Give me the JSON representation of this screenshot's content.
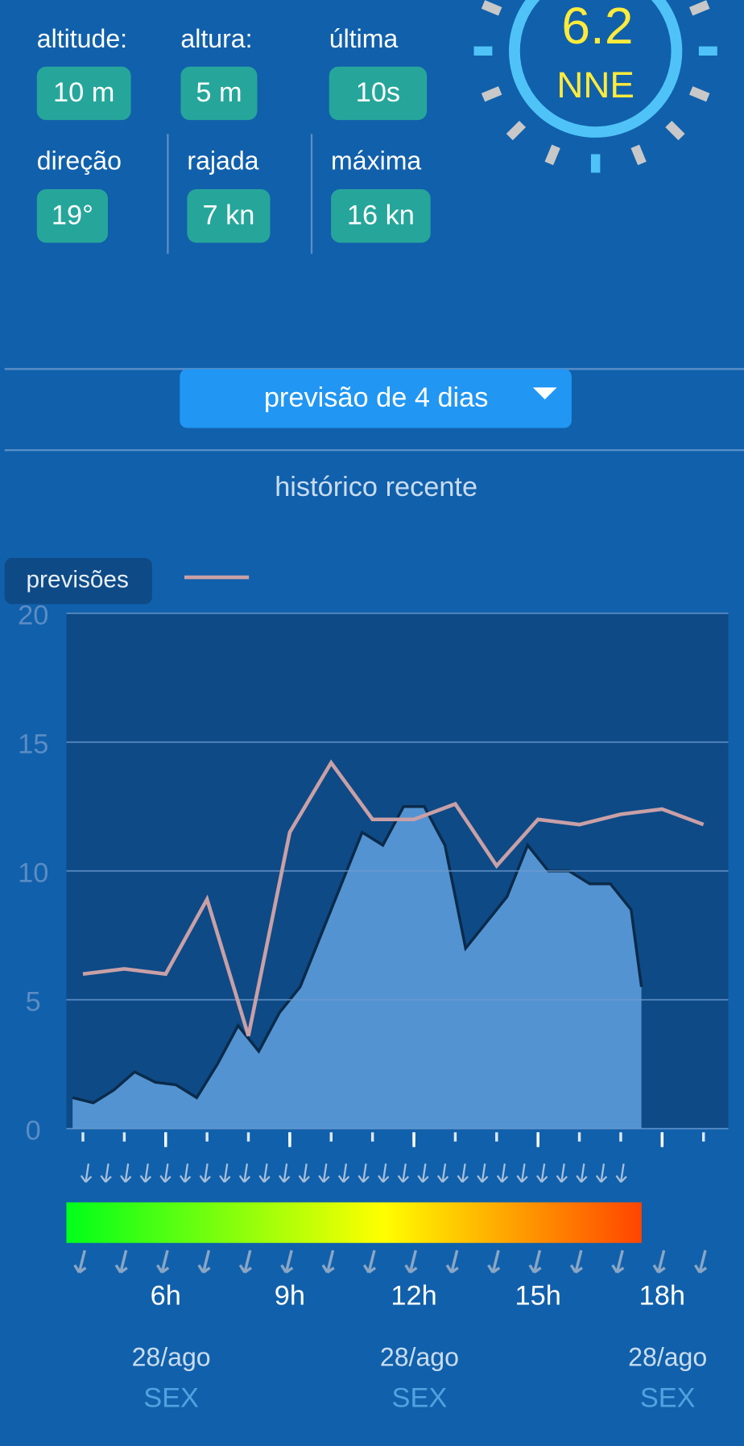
{
  "header": {
    "stats": [
      {
        "label": "altitude:",
        "value": "10 m"
      },
      {
        "label": "altura:",
        "value": "5 m"
      },
      {
        "label": "última",
        "value": "10s"
      },
      {
        "label": "direção",
        "value": "19°"
      },
      {
        "label": "rajada",
        "value": "7 kn"
      },
      {
        "label": "máxima",
        "value": "16 kn"
      }
    ],
    "wind": {
      "speed": "6.2",
      "direction": "NNE"
    }
  },
  "menu": {
    "selected": "previsão de 4 dias"
  },
  "section_title": "histórico recente",
  "chart_data": {
    "type": "line",
    "x": [
      4,
      5,
      6,
      7,
      8,
      9,
      10,
      11,
      12,
      13,
      14,
      15,
      16,
      17,
      18,
      19
    ],
    "series": [
      {
        "name": "previsões",
        "color": "#c9a0a6",
        "values": [
          6.0,
          6.2,
          6.0,
          8.9,
          3.6,
          11.5,
          14.2,
          12.0,
          12.0,
          12.6,
          10.2,
          12.0,
          11.8,
          12.2,
          12.4,
          11.8
        ]
      }
    ],
    "observed": {
      "color": "#5b9bd9",
      "line_color": "#0b2a4a",
      "x": [
        3.75,
        4.25,
        4.75,
        5.25,
        5.75,
        6.25,
        6.75,
        7.25,
        7.75,
        8.25,
        8.75,
        9.25,
        9.75,
        10.25,
        10.75,
        11.25,
        11.75,
        12.25,
        12.75,
        13.25,
        13.75,
        14.25,
        14.75,
        15.25,
        15.75,
        16.25,
        16.75,
        17.25,
        17.5
      ],
      "values": [
        1.2,
        1.0,
        1.5,
        2.2,
        1.8,
        1.7,
        1.2,
        2.5,
        4.0,
        3.0,
        4.5,
        5.5,
        7.5,
        9.5,
        11.5,
        11.0,
        12.5,
        12.5,
        11.0,
        7.0,
        8.0,
        9.0,
        11.0,
        10.0,
        10.0,
        9.5,
        9.5,
        8.5,
        5.5
      ]
    },
    "xlim": [
      3.6,
      19.6
    ],
    "xticks": [
      {
        "value": 6,
        "label": "6h"
      },
      {
        "value": 9,
        "label": "9h"
      },
      {
        "value": 12,
        "label": "12h"
      },
      {
        "value": 15,
        "label": "15h"
      },
      {
        "value": 18,
        "label": "18h"
      }
    ],
    "ylim": [
      0,
      20
    ],
    "yticks": [
      0,
      5,
      10,
      15,
      20
    ],
    "grid": true,
    "date_labels": [
      {
        "date": "28/ago",
        "day": "SEX"
      },
      {
        "date": "28/ago",
        "day": "SEX"
      },
      {
        "date": "28/ago",
        "day": "SEX"
      }
    ]
  }
}
